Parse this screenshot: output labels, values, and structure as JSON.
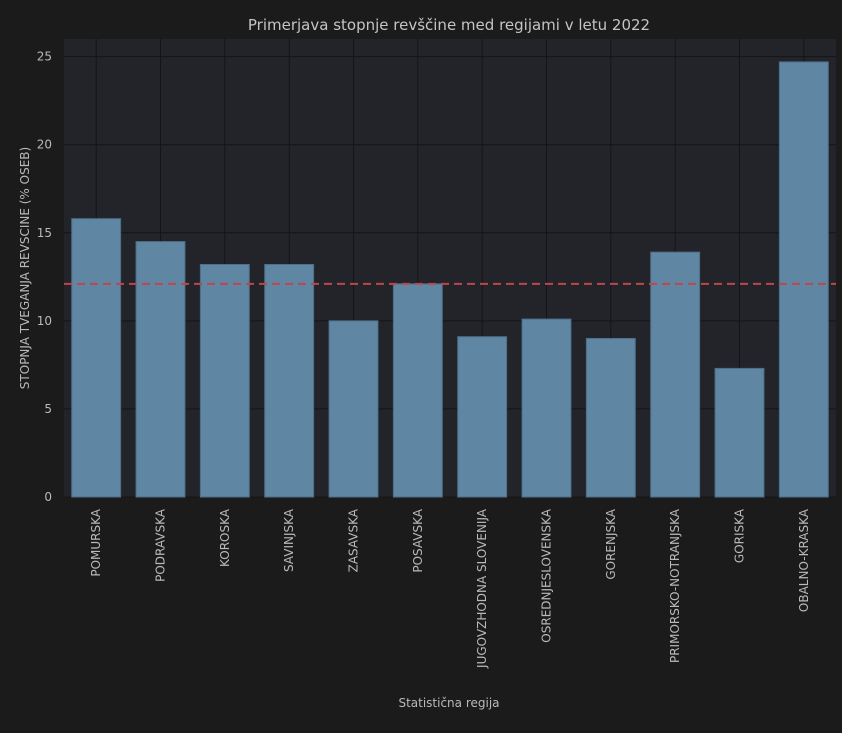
{
  "chart_data": {
    "type": "bar",
    "title": "Primerjava stopnje revščine med regijami v letu 2022",
    "xlabel": "Statistična regija",
    "ylabel": "STOPNJA TVEGANJA REVSCINE (% OSEB)",
    "categories": [
      "POMURSKA",
      "PODRAVSKA",
      "KOROSKA",
      "SAVINJSKA",
      "ZASAVSKA",
      "POSAVSKA",
      "JUGOVZHODNA SLOVENIJA",
      "OSREDNJESLOVENSKA",
      "GORENJSKA",
      "PRIMORSKO-NOTRANJSKA",
      "GORISKA",
      "OBALNO-KRASKA"
    ],
    "values": [
      15.8,
      14.5,
      13.2,
      13.2,
      10.0,
      12.1,
      9.1,
      10.1,
      9.0,
      13.9,
      7.3,
      24.7
    ],
    "yticks": [
      0,
      5,
      10,
      15,
      20,
      25
    ],
    "ylim": [
      0,
      26
    ],
    "reference_line": 12.1,
    "grid": true,
    "colors": {
      "bar": "#5f86a3",
      "bar_edge": "#4d6f88",
      "reference_line": "#c0454a",
      "plot_background": "#23232a",
      "figure_background": "#1b1b1b",
      "grid": "#141418"
    }
  }
}
